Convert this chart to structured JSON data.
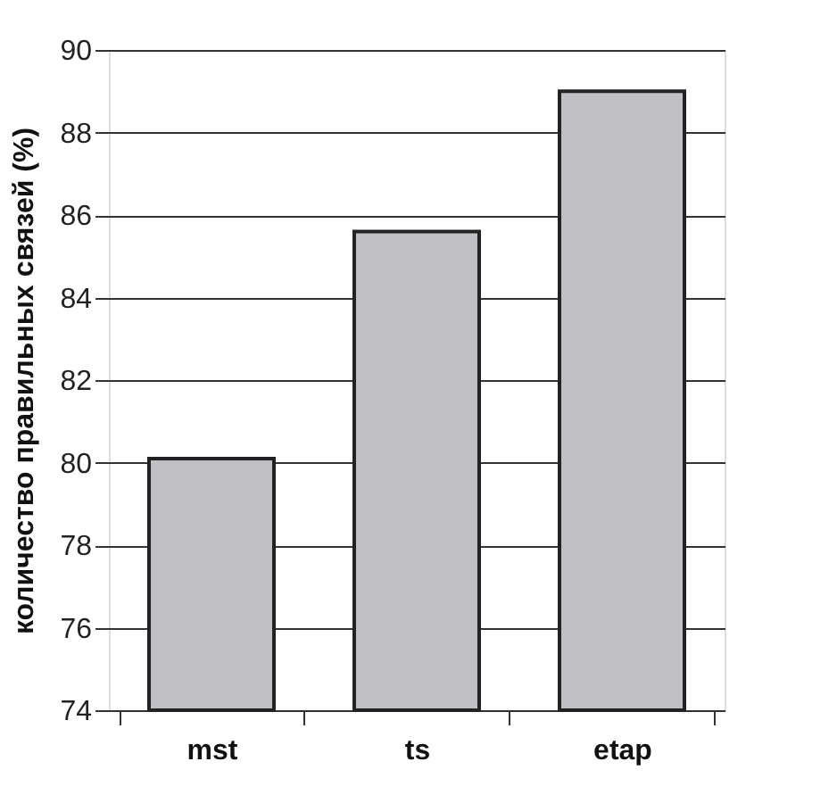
{
  "chart_data": {
    "type": "bar",
    "ylabel": "количество правильных связей (%)",
    "categories": [
      "mst",
      "ts",
      "etap"
    ],
    "values": [
      80.1,
      85.6,
      89.0
    ],
    "color": "#c0c0c4",
    "ylim": [
      74,
      90
    ],
    "yticks": [
      74,
      76,
      78,
      80,
      82,
      84,
      86,
      88,
      90
    ],
    "grid": "y"
  }
}
